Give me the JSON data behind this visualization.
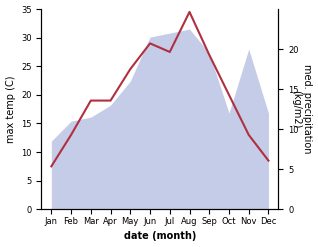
{
  "months": [
    "Jan",
    "Feb",
    "Mar",
    "Apr",
    "May",
    "Jun",
    "Jul",
    "Aug",
    "Sep",
    "Oct",
    "Nov",
    "Dec"
  ],
  "max_temp": [
    7.5,
    13.0,
    19.0,
    19.0,
    24.5,
    29.0,
    27.5,
    34.5,
    27.0,
    20.0,
    13.0,
    8.5
  ],
  "precipitation": [
    8.5,
    11.0,
    11.5,
    13.0,
    16.0,
    21.5,
    22.0,
    22.5,
    19.5,
    12.0,
    20.0,
    12.0
  ],
  "temp_color": "#b03040",
  "precip_fill_color": "#c5cce8",
  "temp_ylim": [
    0,
    35
  ],
  "precip_ylim": [
    0,
    25
  ],
  "temp_yticks": [
    0,
    5,
    10,
    15,
    20,
    25,
    30,
    35
  ],
  "precip_yticks": [
    0,
    5,
    10,
    15,
    20
  ],
  "xlabel": "date (month)",
  "ylabel_left": "max temp (C)",
  "ylabel_right": "med. precipitation\n(kg/m2)",
  "background_color": "#ffffff"
}
